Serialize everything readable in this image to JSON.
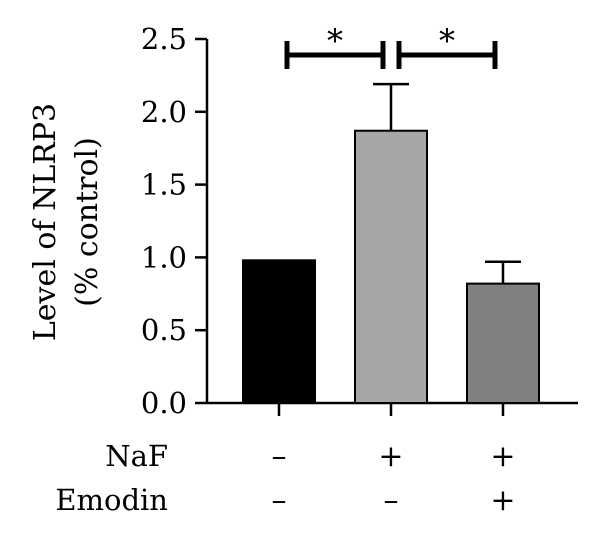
{
  "chart_data": {
    "type": "bar",
    "ylabel": "Level of NLRP3",
    "ylabel_sub": "(% control)",
    "ylim": [
      0.0,
      2.5
    ],
    "yticks": [
      "0.0",
      "0.5",
      "1.0",
      "1.5",
      "2.0",
      "2.5"
    ],
    "grid": false,
    "categories": [
      "Control",
      "NaF",
      "NaF + Emodin"
    ],
    "values": [
      0.98,
      1.87,
      0.82
    ],
    "errors": [
      0.0,
      0.32,
      0.15
    ],
    "bar_colors": [
      "#000000",
      "#a6a6a6",
      "#808080"
    ],
    "treatment_rows": [
      {
        "label": "NaF",
        "marks": [
          "–",
          "+",
          "+"
        ]
      },
      {
        "label": "Emodin",
        "marks": [
          "–",
          "–",
          "+"
        ]
      }
    ],
    "significance": [
      {
        "from": 0,
        "to": 1,
        "label": "*"
      },
      {
        "from": 1,
        "to": 2,
        "label": "*"
      }
    ]
  }
}
